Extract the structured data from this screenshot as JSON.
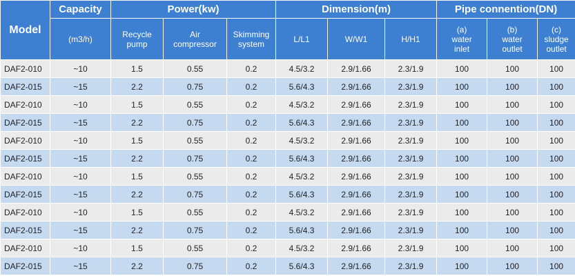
{
  "table": {
    "header": {
      "model": "Model",
      "capacity": "Capacity",
      "capacity_unit": "(m3/h)",
      "power": "Power(kw)",
      "dimension": "Dimension(m)",
      "pipe": "Pipe connention(DN)",
      "recycle_pump": [
        "Recycle",
        "pump"
      ],
      "air_compressor": [
        "Air",
        "compressor"
      ],
      "skimming_system": [
        "Skimming",
        "system"
      ],
      "l_l1": "L/L1",
      "w_w1": "W/W1",
      "h_h1": "H/H1",
      "water_inlet": [
        "(a)",
        "water",
        "inlet"
      ],
      "water_outlet": [
        "(b)",
        "water",
        "outlet"
      ],
      "sludge_outlet": [
        "(c)",
        "sludge",
        "outlet"
      ]
    },
    "rows": [
      [
        "DAF2-010",
        "~10",
        "1.5",
        "0.55",
        "0.2",
        "4.5/3.2",
        "2.9/1.66",
        "2.3/1.9",
        "100",
        "100",
        "100"
      ],
      [
        "DAF2-015",
        "~15",
        "2.2",
        "0.75",
        "0.2",
        "5.6/4.3",
        "2.9/1.66",
        "2.3/1.9",
        "100",
        "100",
        "100"
      ],
      [
        "DAF2-010",
        "~10",
        "1.5",
        "0.55",
        "0.2",
        "4.5/3.2",
        "2.9/1.66",
        "2.3/1.9",
        "100",
        "100",
        "100"
      ],
      [
        "DAF2-015",
        "~15",
        "2.2",
        "0.75",
        "0.2",
        "5.6/4.3",
        "2.9/1.66",
        "2.3/1.9",
        "100",
        "100",
        "100"
      ],
      [
        "DAF2-010",
        "~10",
        "1.5",
        "0.55",
        "0.2",
        "4.5/3.2",
        "2.9/1.66",
        "2.3/1.9",
        "100",
        "100",
        "100"
      ],
      [
        "DAF2-015",
        "~15",
        "2.2",
        "0.75",
        "0.2",
        "5.6/4.3",
        "2.9/1.66",
        "2.3/1.9",
        "100",
        "100",
        "100"
      ],
      [
        "DAF2-010",
        "~10",
        "1.5",
        "0.55",
        "0.2",
        "4.5/3.2",
        "2.9/1.66",
        "2.3/1.9",
        "100",
        "100",
        "100"
      ],
      [
        "DAF2-015",
        "~15",
        "2.2",
        "0.75",
        "0.2",
        "5.6/4.3",
        "2.9/1.66",
        "2.3/1.9",
        "100",
        "100",
        "100"
      ],
      [
        "DAF2-010",
        "~10",
        "1.5",
        "0.55",
        "0.2",
        "4.5/3.2",
        "2.9/1.66",
        "2.3/1.9",
        "100",
        "100",
        "100"
      ],
      [
        "DAF2-015",
        "~15",
        "2.2",
        "0.75",
        "0.2",
        "5.6/4.3",
        "2.9/1.66",
        "2.3/1.9",
        "100",
        "100",
        "100"
      ],
      [
        "DAF2-010",
        "~10",
        "1.5",
        "0.55",
        "0.2",
        "4.5/3.2",
        "2.9/1.66",
        "2.3/1.9",
        "100",
        "100",
        "100"
      ],
      [
        "DAF2-015",
        "~15",
        "2.2",
        "0.75",
        "0.2",
        "5.6/4.3",
        "2.9/1.66",
        "2.3/1.9",
        "100",
        "100",
        "100"
      ]
    ]
  },
  "colors": {
    "header_bg": "#3d7fd1",
    "row_odd_bg": "#ebebeb",
    "row_even_bg": "#c5d9f1"
  }
}
